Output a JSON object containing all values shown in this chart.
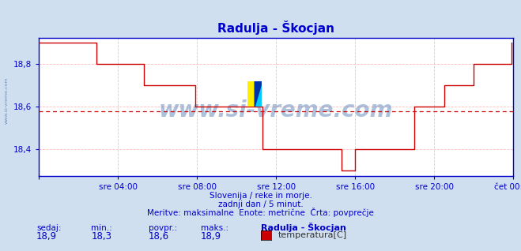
{
  "title": "Radulja - Škocjan",
  "background_color": "#d0dff0",
  "plot_bg_color": "#ffffff",
  "line_color": "#cc0000",
  "avg_line_color": "#cc0000",
  "avg_line_value": 18.58,
  "grid_color": "#ffbbbb",
  "axis_color": "#0000cc",
  "ylim": [
    18.275,
    18.925
  ],
  "yticks": [
    18.4,
    18.6,
    18.8
  ],
  "xlabel_ticks": [
    0,
    4,
    8,
    12,
    16,
    20,
    24
  ],
  "xlabel_labels": [
    "",
    "sre 04:00",
    "sre 08:00",
    "sre 12:00",
    "sre 16:00",
    "sre 20:00",
    "čet 00:00"
  ],
  "watermark": "www.si-vreme.com",
  "watermark_color": "#3366aa",
  "subtitle1": "Slovenija / reke in morje.",
  "subtitle2": "zadnji dan / 5 minut.",
  "subtitle3": "Meritve: maksimalne  Enote: metrične  Črta: povprečje",
  "footer_labels": [
    "sedaj:",
    "min.:",
    "povpr.:",
    "maks.:"
  ],
  "footer_values": [
    "18,9",
    "18,3",
    "18,6",
    "18,9"
  ],
  "legend_label": "Radulja - Škocjan",
  "legend_sublabel": "temperatura[C]",
  "legend_color": "#cc0000",
  "data_x": [
    0.0,
    0.5,
    1.0,
    1.5,
    2.0,
    2.5,
    2.9,
    3.5,
    4.0,
    4.5,
    5.0,
    5.3,
    5.6,
    6.0,
    6.5,
    7.0,
    7.5,
    7.9,
    8.5,
    9.0,
    9.5,
    10.0,
    10.5,
    11.0,
    11.3,
    11.6,
    12.0,
    12.5,
    13.0,
    13.5,
    14.0,
    14.5,
    15.0,
    15.3,
    15.6,
    16.0,
    16.5,
    17.0,
    17.5,
    18.0,
    18.5,
    19.0,
    19.3,
    19.5,
    20.0,
    20.5,
    21.0,
    21.5,
    22.0,
    22.5,
    22.9,
    23.5,
    23.9
  ],
  "data_y": [
    18.9,
    18.9,
    18.9,
    18.9,
    18.9,
    18.9,
    18.8,
    18.8,
    18.8,
    18.8,
    18.8,
    18.7,
    18.7,
    18.7,
    18.7,
    18.7,
    18.7,
    18.6,
    18.6,
    18.6,
    18.6,
    18.6,
    18.6,
    18.6,
    18.4,
    18.4,
    18.4,
    18.4,
    18.4,
    18.4,
    18.4,
    18.4,
    18.4,
    18.3,
    18.3,
    18.4,
    18.4,
    18.4,
    18.4,
    18.4,
    18.4,
    18.6,
    18.6,
    18.6,
    18.6,
    18.7,
    18.7,
    18.7,
    18.8,
    18.8,
    18.8,
    18.8,
    18.9
  ]
}
